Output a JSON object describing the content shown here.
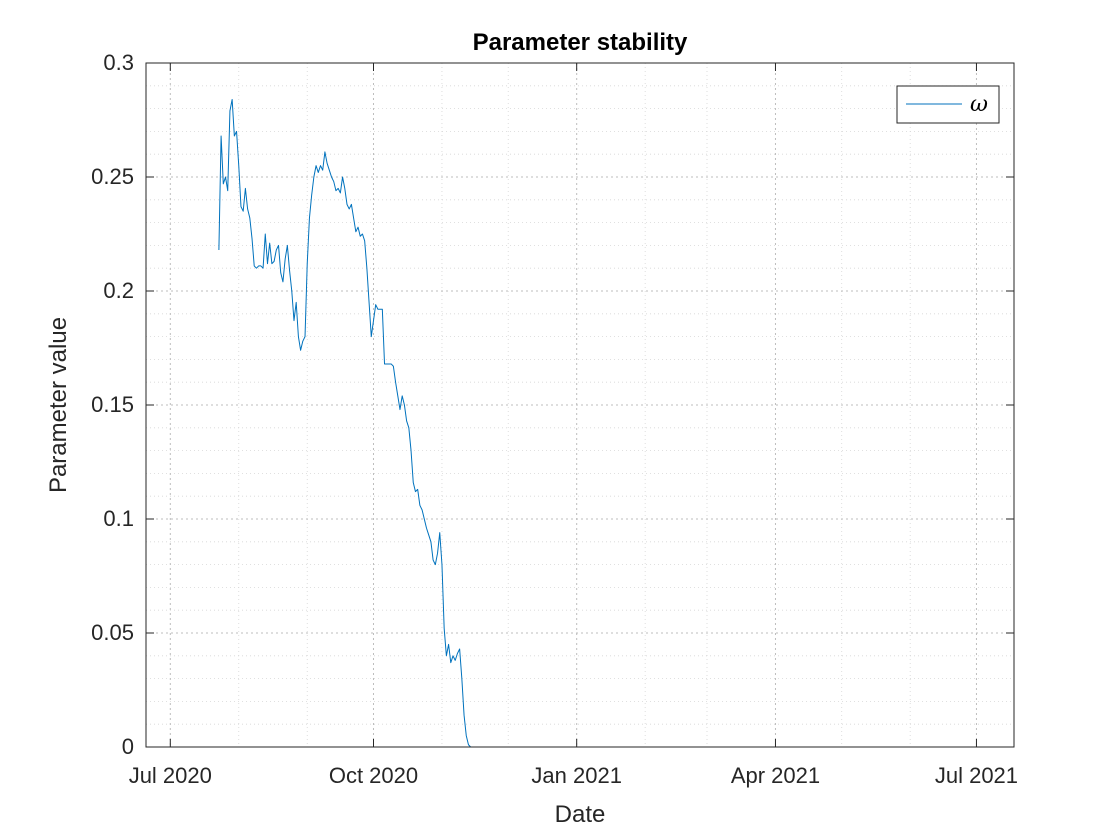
{
  "chart_data": {
    "type": "line",
    "title": "Parameter stability",
    "xlabel": "Date",
    "ylabel": "Parameter value",
    "xlim": [
      "2020-06-20",
      "2021-07-18"
    ],
    "ylim": [
      0,
      0.3
    ],
    "x_ticks": [
      {
        "date": "2020-07-01",
        "label": "Jul 2020"
      },
      {
        "date": "2020-10-01",
        "label": "Oct 2020"
      },
      {
        "date": "2021-01-01",
        "label": "Jan 2021"
      },
      {
        "date": "2021-04-01",
        "label": "Apr 2021"
      },
      {
        "date": "2021-07-01",
        "label": "Jul 2021"
      }
    ],
    "y_ticks": [
      {
        "value": 0,
        "label": "0"
      },
      {
        "value": 0.05,
        "label": "0.05"
      },
      {
        "value": 0.1,
        "label": "0.1"
      },
      {
        "value": 0.15,
        "label": "0.15"
      },
      {
        "value": 0.2,
        "label": "0.2"
      },
      {
        "value": 0.25,
        "label": "0.25"
      },
      {
        "value": 0.3,
        "label": "0.3"
      }
    ],
    "grid": true,
    "minor_grid": true,
    "legend_position": "top-right",
    "series": [
      {
        "name": "ω",
        "color": "#0072BD",
        "x": [
          "2020-07-23",
          "2020-07-24",
          "2020-07-25",
          "2020-07-26",
          "2020-07-27",
          "2020-07-28",
          "2020-07-29",
          "2020-07-30",
          "2020-07-31",
          "2020-08-01",
          "2020-08-02",
          "2020-08-03",
          "2020-08-04",
          "2020-08-05",
          "2020-08-06",
          "2020-08-07",
          "2020-08-08",
          "2020-08-09",
          "2020-08-10",
          "2020-08-11",
          "2020-08-12",
          "2020-08-13",
          "2020-08-14",
          "2020-08-15",
          "2020-08-16",
          "2020-08-17",
          "2020-08-18",
          "2020-08-19",
          "2020-08-20",
          "2020-08-21",
          "2020-08-22",
          "2020-08-23",
          "2020-08-24",
          "2020-08-25",
          "2020-08-26",
          "2020-08-27",
          "2020-08-28",
          "2020-08-29",
          "2020-08-30",
          "2020-08-31",
          "2020-09-01",
          "2020-09-02",
          "2020-09-03",
          "2020-09-04",
          "2020-09-05",
          "2020-09-06",
          "2020-09-07",
          "2020-09-08",
          "2020-09-09",
          "2020-09-10",
          "2020-09-11",
          "2020-09-12",
          "2020-09-13",
          "2020-09-14",
          "2020-09-15",
          "2020-09-16",
          "2020-09-17",
          "2020-09-18",
          "2020-09-19",
          "2020-09-20",
          "2020-09-21",
          "2020-09-22",
          "2020-09-23",
          "2020-09-24",
          "2020-09-25",
          "2020-09-26",
          "2020-09-27",
          "2020-09-28",
          "2020-09-29",
          "2020-09-30",
          "2020-10-01",
          "2020-10-02",
          "2020-10-03",
          "2020-10-04",
          "2020-10-05",
          "2020-10-06",
          "2020-10-07",
          "2020-10-08",
          "2020-10-09",
          "2020-10-10",
          "2020-10-11",
          "2020-10-12",
          "2020-10-13",
          "2020-10-14",
          "2020-10-15",
          "2020-10-16",
          "2020-10-17",
          "2020-10-18",
          "2020-10-19",
          "2020-10-20",
          "2020-10-21",
          "2020-10-22",
          "2020-10-23",
          "2020-10-24",
          "2020-10-25",
          "2020-10-26",
          "2020-10-27",
          "2020-10-28",
          "2020-10-29",
          "2020-10-30",
          "2020-10-31",
          "2020-11-01",
          "2020-11-02",
          "2020-11-03",
          "2020-11-04",
          "2020-11-05",
          "2020-11-06",
          "2020-11-07",
          "2020-11-08",
          "2020-11-09",
          "2020-11-10",
          "2020-11-11",
          "2020-11-12",
          "2020-11-13",
          "2020-11-14",
          "2020-11-15",
          "2020-11-16",
          "2020-11-17",
          "2020-11-18",
          "2020-11-19",
          "2020-11-20",
          "2020-11-21",
          "2020-11-22",
          "2020-11-23",
          "2020-11-24",
          "2020-11-25",
          "2020-11-26",
          "2020-11-27",
          "2020-11-28",
          "2021-07-01"
        ],
        "y": [
          0.218,
          0.268,
          0.247,
          0.25,
          0.244,
          0.279,
          0.284,
          0.268,
          0.27,
          0.255,
          0.237,
          0.235,
          0.245,
          0.236,
          0.232,
          0.223,
          0.211,
          0.21,
          0.211,
          0.211,
          0.21,
          0.225,
          0.212,
          0.221,
          0.212,
          0.213,
          0.218,
          0.22,
          0.208,
          0.204,
          0.214,
          0.22,
          0.209,
          0.2,
          0.187,
          0.195,
          0.18,
          0.174,
          0.178,
          0.18,
          0.212,
          0.232,
          0.242,
          0.25,
          0.255,
          0.252,
          0.255,
          0.253,
          0.261,
          0.256,
          0.253,
          0.25,
          0.248,
          0.244,
          0.245,
          0.243,
          0.25,
          0.245,
          0.238,
          0.236,
          0.238,
          0.232,
          0.226,
          0.228,
          0.224,
          0.225,
          0.222,
          0.21,
          0.195,
          0.18,
          0.187,
          0.194,
          0.192,
          0.192,
          0.192,
          0.168,
          0.168,
          0.168,
          0.168,
          0.167,
          0.16,
          0.154,
          0.148,
          0.154,
          0.15,
          0.143,
          0.14,
          0.13,
          0.116,
          0.112,
          0.113,
          0.106,
          0.104,
          0.1,
          0.096,
          0.093,
          0.09,
          0.082,
          0.08,
          0.085,
          0.094,
          0.08,
          0.052,
          0.04,
          0.045,
          0.037,
          0.04,
          0.038,
          0.041,
          0.043,
          0.03,
          0.014,
          0.005,
          0.001,
          0,
          0,
          0,
          0,
          0,
          0,
          0,
          0,
          0,
          0,
          0,
          0,
          0,
          0,
          0,
          0
        ]
      }
    ]
  }
}
